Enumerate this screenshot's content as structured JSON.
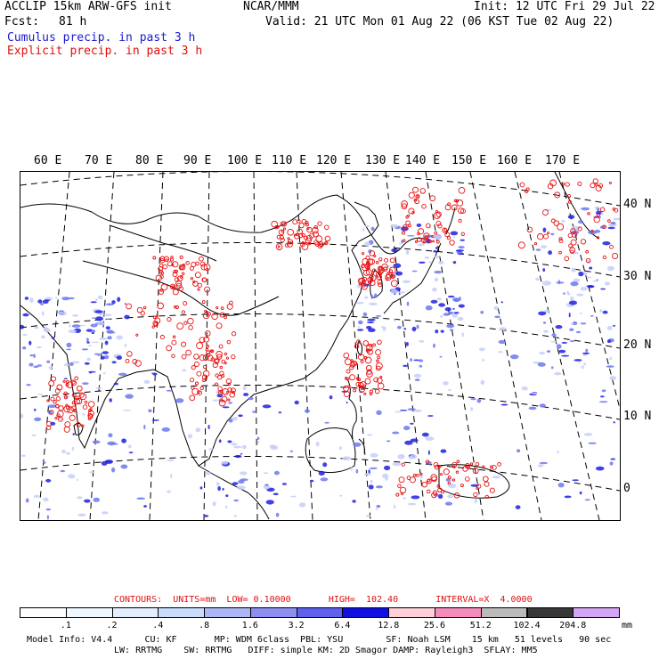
{
  "header": {
    "model_line": "ACCLIP 15km ARW-GFS init",
    "fcst_label": "Fcst:",
    "fcst_value": "81 h",
    "center_title": "NCAR/MMM",
    "init_line": "Init: 12 UTC Fri 29 Jul 22",
    "valid_line": "Valid: 21 UTC Mon 01 Aug 22 (06 KST Tue 02 Aug 22)",
    "cumulus_label": "Cumulus precip. in past 3 h",
    "explicit_label": "Explicit precip. in past 3 h"
  },
  "map": {
    "lon_labels": [
      "60 E",
      "70 E",
      "80 E",
      "90 E",
      "100 E",
      "110 E",
      "120 E",
      "130 E",
      "140 E",
      "150 E",
      "160 E",
      "170 E"
    ],
    "lat_labels": [
      "40 N",
      "30 N",
      "20 N",
      "10 N",
      "0"
    ],
    "cumulus_color": "#2020e0",
    "explicit_color": "#e81010",
    "coast_color": "#000000"
  },
  "legend": {
    "contours_text": "CONTOURS:  UNITS=mm  LOW= 0.10000       HIGH=  102.40       INTERVAL=X  4.0000",
    "ticks": [
      ".1",
      ".2",
      ".4",
      ".8",
      "1.6",
      "3.2",
      "6.4",
      "12.8",
      "25.6",
      "51.2",
      "102.4",
      "204.8"
    ],
    "units": "mm",
    "colors": [
      "#ffffff",
      "#f0f8ff",
      "#e3efff",
      "#c9ddfb",
      "#aeb7f5",
      "#8c8ef0",
      "#6060ee",
      "#1010e0",
      "#ffd0d8",
      "#f58cbc",
      "#bbbbbb",
      "#383838",
      "#d2a6f5"
    ]
  },
  "footer": {
    "line1": "Model Info: V4.4      CU: KF       MP: WDM 6class  PBL: YSU        SF: Noah LSM    15 km   51 levels   90 sec",
    "line2": "LW: RRTMG    SW: RRTMG   DIFF: simple KM: 2D Smagor DAMP: Rayleigh3  SFLAY: MM5"
  }
}
